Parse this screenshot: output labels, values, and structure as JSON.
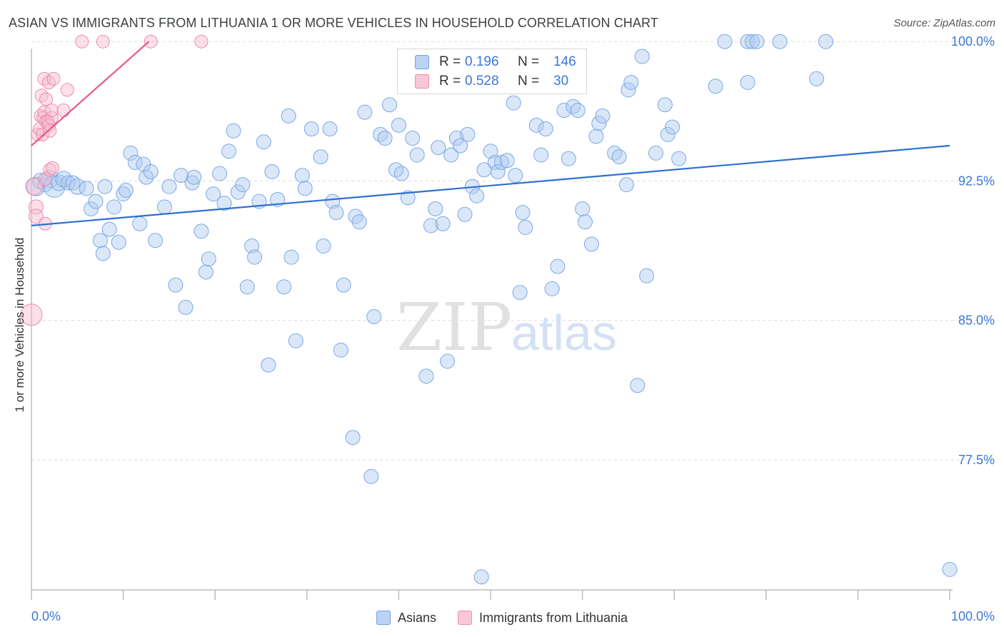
{
  "header": {
    "title": "ASIAN VS IMMIGRANTS FROM LITHUANIA 1 OR MORE VEHICLES IN HOUSEHOLD CORRELATION CHART",
    "source": "Source: ZipAtlas.com"
  },
  "watermark": {
    "zip": "ZIP",
    "atlas": "atlas"
  },
  "legend": {
    "rows": [
      {
        "r_label": "R =",
        "r_value": "0.196",
        "n_label": "N =",
        "n_value": "146",
        "color": "#6fa3e8"
      },
      {
        "r_label": "R =",
        "r_value": "0.528",
        "n_label": "N =",
        "n_value": "30",
        "color": "#ef8aab"
      }
    ]
  },
  "bottom_legend": {
    "asians": "Asians",
    "lithuania": "Immigrants from Lithuania"
  },
  "chart_data": {
    "type": "scatter",
    "xlabel": "",
    "ylabel": "1 or more Vehicles in Household",
    "xlim": [
      0,
      100
    ],
    "ylim": [
      70.5,
      100.7
    ],
    "x_tick_labels": [
      "0.0%",
      "100.0%"
    ],
    "y_ticks": [
      {
        "value": 100.0,
        "label": "100.0%"
      },
      {
        "value": 92.5,
        "label": "92.5%"
      },
      {
        "value": 85.0,
        "label": "85.0%"
      },
      {
        "value": 77.5,
        "label": "77.5%"
      }
    ],
    "grid": "horizontal dashed",
    "series": [
      {
        "name": "Asians",
        "color": "#6fa3e8",
        "trend": {
          "x": [
            0,
            100
          ],
          "y": [
            90.1,
            94.4
          ]
        },
        "points": [
          [
            0.5,
            92.2,
            20
          ],
          [
            1,
            92.5,
            16
          ],
          [
            1.5,
            92.3,
            14
          ],
          [
            2,
            92.6,
            18
          ],
          [
            2.5,
            92.2,
            24
          ],
          [
            3,
            92.4,
            16
          ],
          [
            3.5,
            92.6,
            16
          ],
          [
            4,
            92.4,
            14
          ],
          [
            4.5,
            92.4,
            14
          ],
          [
            5,
            92.2,
            16
          ],
          [
            6,
            92.1,
            14
          ],
          [
            6.5,
            91.0,
            14
          ],
          [
            7,
            91.4,
            14
          ],
          [
            7.5,
            89.3,
            14
          ],
          [
            7.8,
            88.6,
            14
          ],
          [
            8,
            92.2,
            14
          ],
          [
            8.5,
            89.9,
            14
          ],
          [
            9,
            91.1,
            14
          ],
          [
            9.5,
            89.2,
            14
          ],
          [
            10,
            91.8,
            14
          ],
          [
            10.3,
            92.0,
            14
          ],
          [
            10.8,
            94.0,
            14
          ],
          [
            11.3,
            93.5,
            14
          ],
          [
            11.8,
            90.2,
            14
          ],
          [
            12.2,
            93.4,
            14
          ],
          [
            12.5,
            92.7,
            14
          ],
          [
            13,
            93.0,
            14
          ],
          [
            13.5,
            89.3,
            14
          ],
          [
            14.5,
            91.1,
            14
          ],
          [
            15,
            92.2,
            14
          ],
          [
            15.7,
            86.9,
            14
          ],
          [
            16.3,
            92.8,
            14
          ],
          [
            16.8,
            85.7,
            14
          ],
          [
            17.5,
            92.4,
            14
          ],
          [
            17.7,
            92.7,
            14
          ],
          [
            18.5,
            89.8,
            14
          ],
          [
            19,
            87.6,
            14
          ],
          [
            19.3,
            88.3,
            14
          ],
          [
            19.8,
            91.8,
            14
          ],
          [
            20.5,
            92.9,
            14
          ],
          [
            21,
            91.3,
            14
          ],
          [
            21.5,
            94.1,
            14
          ],
          [
            22,
            95.2,
            14
          ],
          [
            22.5,
            91.9,
            14
          ],
          [
            23,
            92.3,
            14
          ],
          [
            23.5,
            86.8,
            14
          ],
          [
            24,
            89.0,
            14
          ],
          [
            24.3,
            88.4,
            14
          ],
          [
            24.8,
            91.4,
            14
          ],
          [
            25.3,
            94.6,
            14
          ],
          [
            25.8,
            82.6,
            14
          ],
          [
            26.2,
            93.0,
            14
          ],
          [
            26.8,
            91.5,
            14
          ],
          [
            27.5,
            86.8,
            14
          ],
          [
            28,
            96.0,
            14
          ],
          [
            28.3,
            88.4,
            14
          ],
          [
            28.8,
            83.9,
            14
          ],
          [
            29.5,
            92.8,
            14
          ],
          [
            29.8,
            92.1,
            14
          ],
          [
            30.5,
            95.3,
            14
          ],
          [
            31.5,
            93.8,
            14
          ],
          [
            31.8,
            89.0,
            14
          ],
          [
            32.5,
            95.3,
            14
          ],
          [
            32.8,
            91.4,
            14
          ],
          [
            33.2,
            90.8,
            14
          ],
          [
            33.7,
            83.4,
            14
          ],
          [
            34,
            86.9,
            14
          ],
          [
            35,
            78.7,
            14
          ],
          [
            35.3,
            90.6,
            14
          ],
          [
            35.7,
            90.3,
            14
          ],
          [
            36.3,
            96.2,
            14
          ],
          [
            37,
            76.6,
            14
          ],
          [
            37.3,
            85.2,
            14
          ],
          [
            38,
            95.0,
            14
          ],
          [
            38.5,
            94.8,
            14
          ],
          [
            39,
            96.6,
            14
          ],
          [
            39.7,
            93.1,
            14
          ],
          [
            40,
            95.5,
            14
          ],
          [
            40.3,
            92.9,
            14
          ],
          [
            41,
            91.6,
            14
          ],
          [
            41.5,
            94.8,
            14
          ],
          [
            42,
            93.9,
            14
          ],
          [
            43,
            82.0,
            14
          ],
          [
            43.5,
            90.1,
            14
          ],
          [
            44,
            91.0,
            14
          ],
          [
            44.3,
            94.3,
            14
          ],
          [
            44.8,
            90.2,
            14
          ],
          [
            45.3,
            82.8,
            14
          ],
          [
            45.7,
            93.9,
            14
          ],
          [
            46.3,
            94.8,
            14
          ],
          [
            46.7,
            94.4,
            14
          ],
          [
            47.2,
            90.7,
            14
          ],
          [
            47.5,
            95.0,
            14
          ],
          [
            48,
            92.2,
            14
          ],
          [
            48.5,
            91.7,
            14
          ],
          [
            49,
            71.2,
            14
          ],
          [
            49.3,
            93.1,
            14
          ],
          [
            50,
            94.1,
            14
          ],
          [
            50.5,
            93.5,
            14
          ],
          [
            50.8,
            93.0,
            14
          ],
          [
            51.2,
            93.5,
            14
          ],
          [
            51.8,
            93.6,
            14
          ],
          [
            52.5,
            96.7,
            14
          ],
          [
            52.7,
            92.8,
            14
          ],
          [
            53.2,
            86.5,
            14
          ],
          [
            53.5,
            90.8,
            14
          ],
          [
            53.8,
            90.0,
            14
          ],
          [
            55,
            95.5,
            14
          ],
          [
            55.5,
            93.9,
            14
          ],
          [
            56,
            95.3,
            14
          ],
          [
            56.7,
            86.7,
            14
          ],
          [
            57.3,
            87.9,
            14
          ],
          [
            58,
            96.3,
            14
          ],
          [
            58.5,
            93.7,
            14
          ],
          [
            59,
            96.5,
            14
          ],
          [
            59.5,
            96.3,
            14
          ],
          [
            60,
            91.0,
            14
          ],
          [
            60.3,
            90.3,
            14
          ],
          [
            61,
            89.1,
            14
          ],
          [
            61.5,
            94.9,
            14
          ],
          [
            61.8,
            95.6,
            14
          ],
          [
            62.2,
            96.0,
            14
          ],
          [
            63.5,
            94.0,
            14
          ],
          [
            64,
            93.8,
            14
          ],
          [
            64.8,
            92.3,
            14
          ],
          [
            65,
            97.4,
            14
          ],
          [
            65.3,
            97.8,
            14
          ],
          [
            66,
            81.5,
            14
          ],
          [
            66.5,
            99.2,
            14
          ],
          [
            67,
            87.4,
            14
          ],
          [
            68,
            94.0,
            14
          ],
          [
            69,
            96.6,
            14
          ],
          [
            69.3,
            95.0,
            14
          ],
          [
            69.8,
            95.4,
            14
          ],
          [
            70.5,
            93.7,
            14
          ],
          [
            74.5,
            97.6,
            14
          ],
          [
            75.5,
            100.0,
            14
          ],
          [
            78,
            97.8,
            14
          ],
          [
            78,
            100.0,
            14
          ],
          [
            78.5,
            100.0,
            14
          ],
          [
            79,
            100.0,
            14
          ],
          [
            81.5,
            100.0,
            14
          ],
          [
            85.5,
            98.0,
            14
          ],
          [
            86.5,
            100.0,
            14
          ],
          [
            100,
            71.6,
            14
          ]
        ]
      },
      {
        "name": "Immigrants from Lithuania",
        "color": "#ef8aab",
        "trend": {
          "x": [
            0,
            12.8
          ],
          "y": [
            94.4,
            100.0
          ]
        },
        "points": [
          [
            0,
            85.3,
            24
          ],
          [
            0.3,
            92.2,
            18
          ],
          [
            0.5,
            91.1,
            14
          ],
          [
            0.5,
            90.6,
            14
          ],
          [
            0.7,
            95.0,
            12
          ],
          [
            0.9,
            95.3,
            12
          ],
          [
            1,
            96.0,
            12
          ],
          [
            1.1,
            97.1,
            12
          ],
          [
            1.2,
            95.0,
            12
          ],
          [
            1.3,
            95.9,
            12
          ],
          [
            1.4,
            98.0,
            12
          ],
          [
            1.4,
            96.2,
            12
          ],
          [
            1.5,
            92.6,
            12
          ],
          [
            1.5,
            90.2,
            12
          ],
          [
            1.6,
            95.7,
            12
          ],
          [
            1.6,
            96.9,
            12
          ],
          [
            1.8,
            95.7,
            12
          ],
          [
            1.9,
            95.5,
            12
          ],
          [
            1.9,
            97.8,
            12
          ],
          [
            2,
            95.2,
            12
          ],
          [
            2,
            93.1,
            12
          ],
          [
            2.2,
            95.9,
            12
          ],
          [
            2.2,
            96.3,
            12
          ],
          [
            2.3,
            93.2,
            12
          ],
          [
            2.4,
            98.0,
            12
          ],
          [
            3.5,
            96.3,
            12
          ],
          [
            3.9,
            97.4,
            12
          ],
          [
            5.5,
            100.0,
            12
          ],
          [
            7.8,
            100.0,
            12
          ],
          [
            13,
            100.0,
            12
          ],
          [
            18.5,
            100.0,
            12
          ]
        ]
      }
    ]
  }
}
